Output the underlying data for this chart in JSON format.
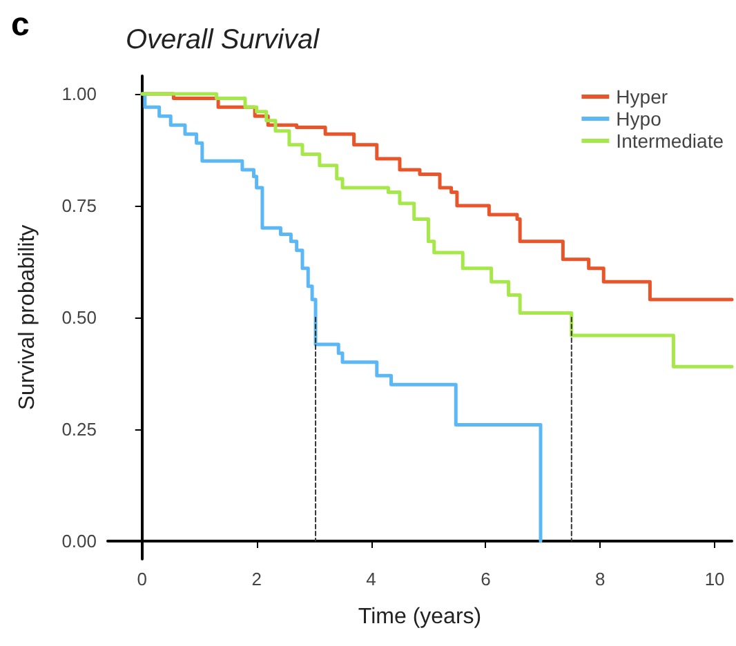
{
  "chart_data": {
    "type": "step",
    "title": "Overall Survival",
    "xlabel": "Time (years)",
    "ylabel": "Survival probability",
    "annotations": [
      "c"
    ],
    "xlim": [
      -0.6,
      10.3
    ],
    "xticks": [
      0,
      2,
      4,
      6,
      8,
      10
    ],
    "ylim": [
      -0.04,
      1.04
    ],
    "yticks": [
      {
        "value": 0,
        "label": "0.00"
      },
      {
        "value": 0.25,
        "label": "0.25"
      },
      {
        "value": 0.5,
        "label": "0.50"
      },
      {
        "value": 0.75,
        "label": "0.75"
      },
      {
        "value": 1,
        "label": "1.00"
      }
    ],
    "grid": false,
    "legend": "top right",
    "series": [
      {
        "name": "Hyper",
        "color": "#e8552a",
        "x": [
          0,
          0.55,
          1.33,
          1.97,
          2.2,
          2.7,
          3.2,
          3.7,
          4.1,
          4.5,
          4.85,
          5.2,
          5.4,
          5.5,
          6.06,
          6.55,
          6.6,
          7.35,
          7.8,
          8.06,
          8.87,
          10.3
        ],
        "values": [
          1,
          0.99,
          0.97,
          0.95,
          0.93,
          0.925,
          0.91,
          0.886,
          0.855,
          0.83,
          0.82,
          0.79,
          0.78,
          0.75,
          0.73,
          0.72,
          0.67,
          0.63,
          0.61,
          0.58,
          0.54,
          0.54
        ]
      },
      {
        "name": "Hypo",
        "color": "#5bb8f5",
        "x": [
          0,
          0.05,
          0.3,
          0.5,
          0.75,
          0.95,
          1.05,
          1.75,
          1.95,
          2.0,
          2.1,
          2.42,
          2.6,
          2.7,
          2.8,
          2.9,
          2.97,
          3.03,
          3.43,
          3.5,
          4.1,
          4.35,
          5.48,
          6.96
        ],
        "values": [
          1,
          0.97,
          0.95,
          0.93,
          0.91,
          0.89,
          0.85,
          0.83,
          0.815,
          0.79,
          0.7,
          0.686,
          0.67,
          0.65,
          0.61,
          0.57,
          0.54,
          0.44,
          0.42,
          0.4,
          0.37,
          0.35,
          0.26,
          0
        ]
      },
      {
        "name": "Intermediate",
        "color": "#a6e84a",
        "x": [
          0,
          1.3,
          1.8,
          2.0,
          2.17,
          2.33,
          2.57,
          2.8,
          3.1,
          3.4,
          3.5,
          4.3,
          4.5,
          4.75,
          5.0,
          5.1,
          5.6,
          6.1,
          6.4,
          6.6,
          7.5,
          9.28,
          10.3
        ],
        "values": [
          1,
          0.99,
          0.97,
          0.96,
          0.94,
          0.917,
          0.886,
          0.865,
          0.84,
          0.81,
          0.79,
          0.78,
          0.755,
          0.72,
          0.67,
          0.645,
          0.61,
          0.58,
          0.55,
          0.51,
          0.46,
          0.39,
          0.39
        ]
      },
      {
        "type": "line",
        "color": "#333333",
        "line_style": "dashed",
        "x": [
          3.03,
          3.03
        ],
        "values": [
          0.5,
          0
        ]
      },
      {
        "type": "line",
        "color": "#333333",
        "line_style": "dashed",
        "x": [
          7.5,
          7.5
        ],
        "values": [
          0.5,
          0
        ]
      }
    ]
  }
}
